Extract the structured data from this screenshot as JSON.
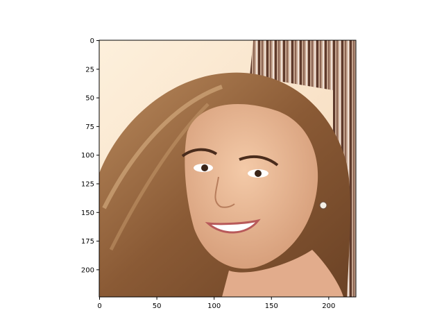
{
  "chart_data": {
    "type": "image",
    "title": "",
    "xlabel": "",
    "ylabel": "",
    "xlim": [
      0,
      224
    ],
    "ylim": [
      224,
      0
    ],
    "x_ticks": [
      0,
      50,
      100,
      150,
      200
    ],
    "y_ticks": [
      0,
      25,
      50,
      75,
      100,
      125,
      150,
      175,
      200
    ],
    "x_tick_labels": [
      "0",
      "50",
      "100",
      "150",
      "200"
    ],
    "y_tick_labels": [
      "0",
      "25",
      "50",
      "75",
      "100",
      "125",
      "150",
      "175",
      "200"
    ],
    "grid": false,
    "image_content": "portrait-photo",
    "colors": {
      "background": "#fbe9d4",
      "hair": "#9a6a42",
      "skin": "#e6b393",
      "stripes": "#7a5040",
      "axis": "#000000"
    }
  }
}
